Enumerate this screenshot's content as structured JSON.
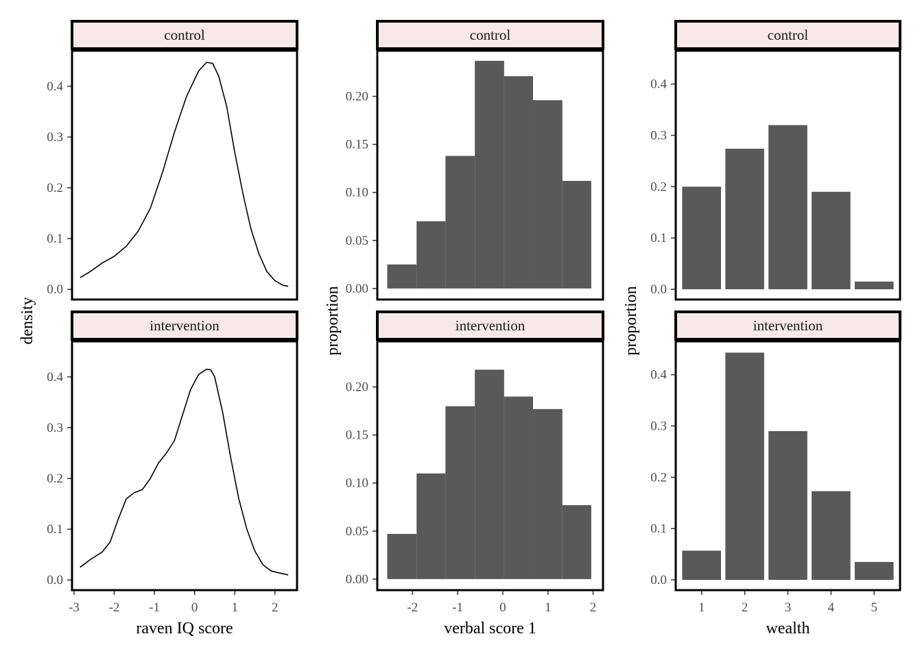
{
  "colors": {
    "strip_fill": "#f8e8e8",
    "bar_fill": "#595959",
    "line": "#000000",
    "panel_border": "#000000",
    "tick_text": "#4d4d4d"
  },
  "chart_data": [
    {
      "id": "density-panels",
      "type": "line",
      "ylabel": "density",
      "xlabel": "raven IQ score",
      "x_ticks": [
        -3,
        -2,
        -1,
        0,
        1,
        2
      ],
      "x_tick_labels": [
        "-3",
        "-2",
        "-1",
        "0",
        "1",
        "2"
      ],
      "y_ticks": [
        0,
        0.1,
        0.2,
        0.3,
        0.4
      ],
      "y_tick_labels": [
        "0.0",
        "0.1",
        "0.2",
        "0.3",
        "0.4"
      ],
      "xlim": [
        -3.05,
        2.55
      ],
      "ylim": [
        -0.02,
        0.47
      ],
      "grid": false,
      "facets": [
        {
          "label": "control",
          "x": [
            -2.85,
            -2.6,
            -2.3,
            -2.0,
            -1.7,
            -1.4,
            -1.1,
            -0.8,
            -0.5,
            -0.2,
            0.1,
            0.3,
            0.45,
            0.6,
            0.8,
            1.0,
            1.2,
            1.4,
            1.6,
            1.8,
            2.0,
            2.2,
            2.33
          ],
          "y": [
            0.023,
            0.035,
            0.052,
            0.065,
            0.085,
            0.115,
            0.16,
            0.23,
            0.31,
            0.38,
            0.43,
            0.447,
            0.445,
            0.42,
            0.36,
            0.27,
            0.19,
            0.12,
            0.07,
            0.035,
            0.017,
            0.008,
            0.006
          ]
        },
        {
          "label": "intervention",
          "x": [
            -2.85,
            -2.6,
            -2.3,
            -2.1,
            -1.9,
            -1.7,
            -1.5,
            -1.3,
            -1.1,
            -0.9,
            -0.7,
            -0.5,
            -0.3,
            -0.1,
            0.1,
            0.3,
            0.4,
            0.5,
            0.7,
            0.9,
            1.1,
            1.3,
            1.5,
            1.7,
            1.9,
            2.1,
            2.33
          ],
          "y": [
            0.025,
            0.04,
            0.055,
            0.075,
            0.12,
            0.16,
            0.172,
            0.178,
            0.2,
            0.23,
            0.25,
            0.275,
            0.325,
            0.375,
            0.405,
            0.415,
            0.414,
            0.4,
            0.33,
            0.24,
            0.16,
            0.1,
            0.057,
            0.03,
            0.018,
            0.014,
            0.01
          ]
        }
      ]
    },
    {
      "id": "verbal-histograms",
      "type": "bar",
      "ylabel": "proportion",
      "xlabel": "verbal score 1",
      "x_ticks": [
        -2,
        -1,
        0,
        1,
        2
      ],
      "x_tick_labels": [
        "-2",
        "-1",
        "0",
        "1",
        "2"
      ],
      "y_ticks": [
        0,
        0.05,
        0.1,
        0.15,
        0.2
      ],
      "y_tick_labels": [
        "0.00",
        "0.05",
        "0.10",
        "0.15",
        "0.20"
      ],
      "xlim": [
        -2.78,
        2.22
      ],
      "ylim": [
        -0.0115,
        0.2475
      ],
      "grid": false,
      "bin_edges": [
        -2.56,
        -1.91,
        -1.27,
        -0.62,
        0.03,
        0.67,
        1.32,
        1.96
      ],
      "facets": [
        {
          "label": "control",
          "values": [
            0.025,
            0.07,
            0.138,
            0.237,
            0.221,
            0.196,
            0.112
          ]
        },
        {
          "label": "intervention",
          "values": [
            0.047,
            0.11,
            0.18,
            0.218,
            0.19,
            0.177,
            0.077
          ]
        }
      ]
    },
    {
      "id": "wealth-bars",
      "type": "bar",
      "ylabel": "proportion",
      "xlabel": "wealth",
      "categories": [
        "1",
        "2",
        "3",
        "4",
        "5"
      ],
      "y_ticks": [
        0,
        0.1,
        0.2,
        0.3,
        0.4
      ],
      "y_tick_labels": [
        "0.0",
        "0.1",
        "0.2",
        "0.3",
        "0.4"
      ],
      "xlim": [
        0.4,
        5.6
      ],
      "ylim": [
        -0.02,
        0.465
      ],
      "grid": false,
      "facets": [
        {
          "label": "control",
          "values": [
            0.2,
            0.274,
            0.32,
            0.19,
            0.015
          ]
        },
        {
          "label": "intervention",
          "values": [
            0.057,
            0.443,
            0.29,
            0.173,
            0.035
          ]
        }
      ]
    }
  ]
}
